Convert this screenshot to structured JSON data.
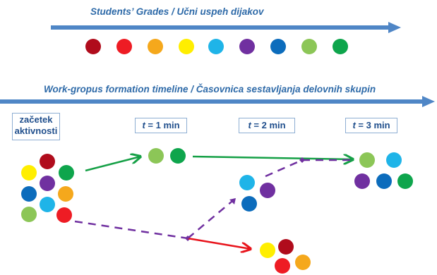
{
  "title": "Students’ Grades / Učni uspeh dijakov",
  "timeline_title": "Work-gropus formation timeline / Časovnica sestavljanja delovnih skupin",
  "stage_start": {
    "line1": "začetek",
    "line2": "aktivnosti"
  },
  "stage_t1": {
    "var": "t",
    "rest": " = 1 min"
  },
  "stage_t2": {
    "var": "t",
    "rest": " = 2 min"
  },
  "stage_t3": {
    "var": "t",
    "rest": " = 3 min"
  },
  "colors": {
    "arrow": "#4f86c6",
    "dark_red": "#b00c1c",
    "red": "#ee1c24",
    "orange": "#f5a81c",
    "yellow": "#ffee00",
    "light_blue": "#1fb4e8",
    "purple": "#7030a0",
    "blue": "#0c6cbc",
    "light_green": "#8cc657",
    "green": "#0ea54c",
    "path_green": "#15a046",
    "path_red": "#e8141c",
    "path_purple": "#7030a0"
  }
}
